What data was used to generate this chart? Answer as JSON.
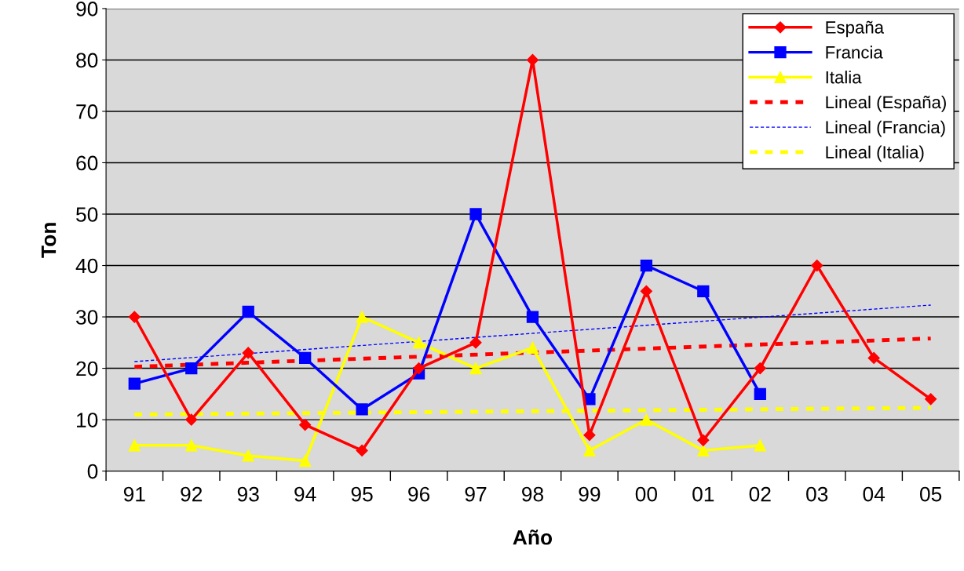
{
  "chart_data": {
    "type": "line",
    "xlabel": "Año",
    "ylabel": "Ton",
    "categories": [
      "91",
      "92",
      "93",
      "94",
      "95",
      "96",
      "97",
      "98",
      "99",
      "00",
      "01",
      "02",
      "03",
      "04",
      "05"
    ],
    "series": [
      {
        "name": "España",
        "color": "#ff0000",
        "marker": "diamond",
        "line_style": "solid",
        "values": [
          30,
          10,
          23,
          9,
          4,
          20,
          25,
          80,
          7,
          35,
          6,
          20,
          40,
          22,
          14
        ]
      },
      {
        "name": "Francia",
        "color": "#0000ff",
        "marker": "square",
        "line_style": "solid",
        "values": [
          17,
          20,
          31,
          22,
          12,
          19,
          50,
          30,
          14,
          40,
          35,
          15,
          null,
          null,
          null
        ]
      },
      {
        "name": "Italia",
        "color": "#ffff00",
        "marker": "triangle",
        "line_style": "solid",
        "values": [
          5,
          5,
          3,
          2,
          30,
          25,
          20,
          24,
          4,
          10,
          4,
          5,
          null,
          null,
          null
        ]
      },
      {
        "name": "Lineal (España)",
        "color": "#ff0000",
        "marker": "none",
        "line_style": "dotted",
        "x": [
          "91",
          "05"
        ],
        "values": [
          20.3,
          25.8
        ]
      },
      {
        "name": "Lineal (Francia)",
        "color": "#0000ff",
        "marker": "none",
        "line_style": "dashed",
        "x": [
          "91",
          "05"
        ],
        "values": [
          21.3,
          32.3
        ]
      },
      {
        "name": "Lineal (Italia)",
        "color": "#ffff00",
        "marker": "none",
        "line_style": "dotted",
        "x": [
          "91",
          "05"
        ],
        "values": [
          11,
          12.3
        ]
      }
    ],
    "ylim": [
      0,
      90
    ],
    "yticks": [
      0,
      10,
      20,
      30,
      40,
      50,
      60,
      70,
      80,
      90
    ],
    "grid": "y",
    "legend": "top right"
  }
}
